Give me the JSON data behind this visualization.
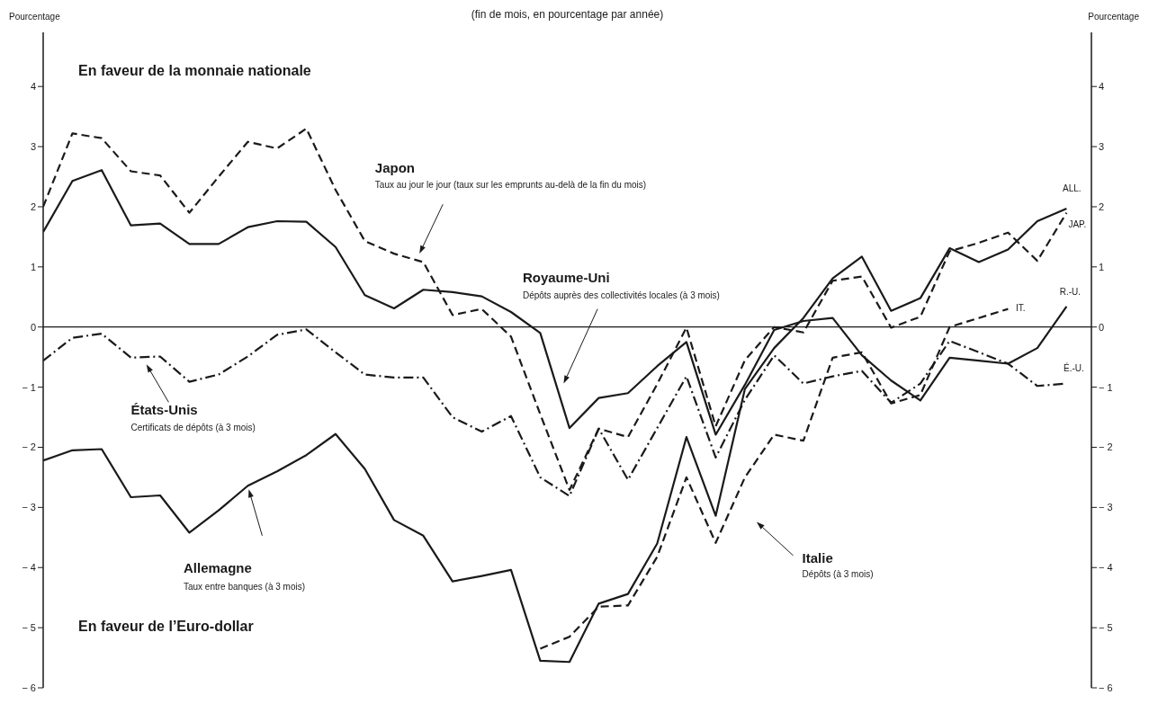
{
  "chart_data": {
    "type": "line",
    "subtitle": "(fin de mois, en pourcentage par année)",
    "ylabel": "Pourcentage",
    "y2label": "Pourcentage",
    "categories": [
      null,
      null,
      null,
      null,
      null,
      null,
      null,
      null,
      null,
      null,
      null,
      null,
      null,
      null,
      null,
      null,
      null,
      null,
      null,
      null,
      null,
      null,
      null,
      null,
      null,
      null,
      null,
      null,
      null,
      null,
      null,
      null,
      null,
      null,
      null,
      null
    ],
    "series": [
      {
        "name": "ALL.",
        "color": "#1a1a1a",
        "line_style": "solid",
        "values": [
          -2.22,
          -2.05,
          -2.03,
          -2.83,
          -2.8,
          -3.42,
          -3.05,
          -2.64,
          -2.4,
          -2.13,
          -1.78,
          -2.36,
          -3.21,
          -3.47,
          -4.23,
          -4.14,
          -4.04,
          -5.55,
          -5.57,
          -4.6,
          -4.44,
          -3.6,
          -1.83,
          -3.14,
          -1.03,
          -0.35,
          0.15,
          0.81,
          1.17,
          0.27,
          0.48,
          1.31,
          1.08,
          1.29,
          1.76,
          1.97
        ]
      },
      {
        "name": "JAP.",
        "color": "#1a1a1a",
        "line_style": "dashed",
        "values": [
          2.0,
          3.22,
          3.14,
          2.59,
          2.52,
          1.9,
          2.5,
          3.08,
          2.97,
          3.3,
          2.28,
          1.43,
          1.22,
          1.08,
          0.2,
          0.3,
          -0.16,
          -1.45,
          -2.71,
          -1.69,
          -1.83,
          -0.95,
          -0.01,
          -1.65,
          -0.55,
          0.0,
          -0.09,
          0.77,
          0.84,
          -0.01,
          0.17,
          1.26,
          1.4,
          1.57,
          1.1,
          1.9
        ]
      },
      {
        "name": "R.-U.",
        "color": "#1a1a1a",
        "line_style": "solid",
        "values": [
          1.58,
          2.43,
          2.61,
          1.69,
          1.72,
          1.38,
          1.38,
          1.66,
          1.76,
          1.75,
          1.33,
          0.53,
          0.31,
          0.62,
          0.58,
          0.51,
          0.25,
          -0.1,
          -1.68,
          -1.18,
          -1.1,
          -0.65,
          -0.25,
          -1.79,
          -0.96,
          -0.05,
          0.1,
          0.15,
          -0.47,
          -0.89,
          -1.22,
          -0.51,
          -0.56,
          -0.61,
          -0.35,
          0.34
        ]
      },
      {
        "name": "IT.",
        "color": "#1a1a1a",
        "line_style": "dashed",
        "values": [
          null,
          null,
          null,
          null,
          null,
          null,
          null,
          null,
          null,
          null,
          null,
          null,
          null,
          null,
          null,
          null,
          null,
          -5.35,
          -5.15,
          -4.65,
          -4.63,
          -3.82,
          -2.5,
          -3.59,
          -2.5,
          -1.79,
          -1.89,
          -0.51,
          -0.42,
          -1.27,
          -1.13,
          0.0,
          0.15,
          0.3,
          null,
          null
        ]
      },
      {
        "name": "É.-U.",
        "color": "#1a1a1a",
        "line_style": "dashdot",
        "values": [
          -0.56,
          -0.18,
          -0.11,
          -0.51,
          -0.49,
          -0.91,
          -0.79,
          -0.49,
          -0.13,
          -0.04,
          -0.42,
          -0.79,
          -0.84,
          -0.84,
          -1.5,
          -1.74,
          -1.48,
          -2.5,
          -2.81,
          -1.69,
          -2.54,
          -1.68,
          -0.82,
          -2.17,
          -1.21,
          -0.47,
          -0.94,
          -0.82,
          -0.73,
          -1.26,
          -0.94,
          -0.23,
          -0.42,
          -0.61,
          -0.98,
          -0.94
        ]
      }
    ],
    "ylim": [
      -6,
      4.9
    ],
    "yticks": [
      -6,
      -5,
      -4,
      -3,
      -2,
      -1,
      0,
      1,
      2,
      3,
      4
    ],
    "y2lim": [
      -6,
      4.9
    ],
    "y2ticks": [
      -6,
      -5,
      -4,
      -3,
      -2,
      -1,
      0,
      1,
      2,
      3,
      4
    ],
    "ref_lines": [
      {
        "axis": "y",
        "value": 0,
        "color": "#1a1a1a"
      }
    ],
    "marker": "none",
    "legend": false,
    "grid": false,
    "annotations": [
      "En faveur de la monnaie nationale",
      "Japon",
      "Taux au jour le jour (taux sur les emprunts au-delà de la fin du mois)",
      "Royaume-Uni",
      "Dépôts auprès des collectivités locales (à 3 mois)",
      "États-Unis",
      "Certificats de dépôts (à 3 mois)",
      "Allemagne",
      "Taux entre banques (à 3 mois)",
      "Italie",
      "Dépôts (à 3 mois)",
      "En faveur de l’Euro-dollar"
    ]
  }
}
